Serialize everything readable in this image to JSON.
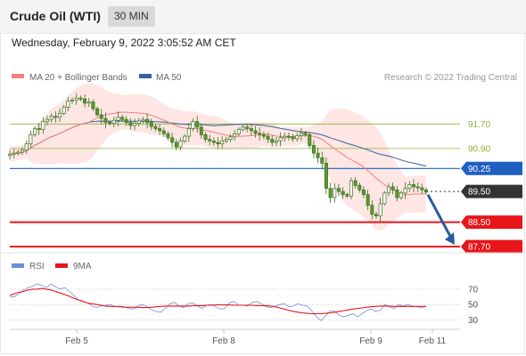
{
  "header": {
    "title": "Crude Oil (WTI)",
    "interval": "30 MIN"
  },
  "timestamp": "Wednesday, February 9, 2022 3:05:52 AM CET",
  "credit": "Research © 2022 Trading Central",
  "colors": {
    "resistance": "#8db33a",
    "pivot": "#1f5fbf",
    "support": "#e8151b",
    "ma50": "#3a5f9e",
    "ma20": "#f08080",
    "bollinger_fill": "#fde3e1",
    "candle": "#5a9a2e",
    "rsi": "#6b8fd8",
    "rsi_ma": "#e8151b",
    "forecast_arrow": "#2a5aa0"
  },
  "chart_data": [
    {
      "type": "candlestick",
      "title": "",
      "legend": [
        {
          "name": "MA 20 + Bollinger Bands",
          "color": "#f08080"
        },
        {
          "name": "MA 50",
          "color": "#3a5f9e"
        }
      ],
      "legend_placement": "top-left",
      "ylim": [
        87.5,
        92.9
      ],
      "x_ticks": [
        "Feb 5",
        "Feb 8",
        "Feb 9",
        "Feb 11"
      ],
      "levels": [
        {
          "label": "91.70",
          "value": 91.7,
          "kind": "resistance"
        },
        {
          "label": "90.90",
          "value": 90.9,
          "kind": "resistance"
        },
        {
          "label": "90.25",
          "value": 90.25,
          "kind": "pivot"
        },
        {
          "label": "89.50",
          "value": 89.5,
          "kind": "current"
        },
        {
          "label": "88.50",
          "value": 88.5,
          "kind": "support"
        },
        {
          "label": "87.70",
          "value": 87.7,
          "kind": "support"
        }
      ],
      "close": [
        90.72,
        90.75,
        90.78,
        90.85,
        91.05,
        91.35,
        91.55,
        91.52,
        91.78,
        91.85,
        91.95,
        91.92,
        92.05,
        92.25,
        92.45,
        92.48,
        92.55,
        92.52,
        92.38,
        92.42,
        92.2,
        92.0,
        91.88,
        91.75,
        91.72,
        91.82,
        91.92,
        91.85,
        91.75,
        91.65,
        91.72,
        91.8,
        91.85,
        91.75,
        91.62,
        91.55,
        91.48,
        91.38,
        91.25,
        91.1,
        90.95,
        91.15,
        91.3,
        91.55,
        91.78,
        91.6,
        91.35,
        91.2,
        91.15,
        91.1,
        91.05,
        91.15,
        91.2,
        91.28,
        91.38,
        91.52,
        91.6,
        91.55,
        91.48,
        91.4,
        91.35,
        91.3,
        91.2,
        91.1,
        91.15,
        91.25,
        91.3,
        91.28,
        91.22,
        91.32,
        91.4,
        91.35,
        91.0,
        90.75,
        90.6,
        90.42,
        89.6,
        89.3,
        89.6,
        89.5,
        89.4,
        89.35,
        89.85,
        89.7,
        89.55,
        89.4,
        89.05,
        88.75,
        88.7,
        89.1,
        89.45,
        89.65,
        89.55,
        89.3,
        89.45,
        89.6,
        89.72,
        89.65,
        89.62,
        89.55,
        89.48
      ]
    },
    {
      "type": "line",
      "title": "",
      "legend": [
        {
          "name": "RSI",
          "color": "#6b8fd8"
        },
        {
          "name": "9MA",
          "color": "#e8151b"
        }
      ],
      "legend_placement": "top-left",
      "ylim": [
        20,
        85
      ],
      "y_ticks": [
        70,
        50,
        30
      ],
      "series": [
        {
          "name": "RSI",
          "values": [
            60,
            60,
            64,
            69,
            72,
            74,
            77,
            75,
            72,
            77,
            73,
            70,
            72,
            67,
            62,
            56,
            54,
            52,
            48,
            46,
            48,
            49,
            50,
            47,
            48,
            47,
            45,
            44,
            48,
            50,
            47,
            43,
            41,
            40,
            45,
            51,
            53,
            48,
            46,
            51,
            52,
            48,
            45,
            49,
            50,
            47,
            44,
            45,
            52,
            54,
            49,
            49,
            48,
            53,
            54,
            51,
            47,
            46,
            48,
            50,
            51,
            47,
            48,
            51,
            49,
            48,
            42,
            34,
            29,
            35,
            42,
            41,
            36,
            34,
            36,
            38,
            34,
            38,
            42,
            44,
            41,
            43,
            50,
            47,
            45,
            50,
            48,
            50,
            48,
            47,
            46,
            48
          ]
        },
        {
          "name": "9MA",
          "values": [
            62,
            64,
            66,
            67,
            69,
            70,
            70,
            71,
            70,
            69,
            67,
            65,
            63,
            61,
            58,
            56,
            54,
            52,
            51,
            50,
            49,
            48,
            47.5,
            47.5,
            47,
            46.5,
            46.5,
            46.5,
            46.5,
            46,
            46,
            46.5,
            47,
            47.5,
            48,
            48,
            48,
            48,
            48,
            48,
            48.5,
            48.5,
            48.5,
            49,
            49,
            49.5,
            49.5,
            49.5,
            49.5,
            49,
            49,
            49,
            49,
            49,
            48.5,
            48.5,
            48.5,
            48,
            47,
            45.5,
            44,
            42.5,
            41,
            40,
            39,
            38.5,
            38,
            38,
            38,
            38.5,
            39,
            40,
            41,
            42,
            43,
            44,
            45,
            45.5,
            46.5,
            47,
            47.5,
            48,
            48,
            48,
            47.5,
            47.5,
            47.5,
            47.5,
            47.5,
            47.5,
            47.5,
            47.5
          ]
        }
      ]
    }
  ]
}
